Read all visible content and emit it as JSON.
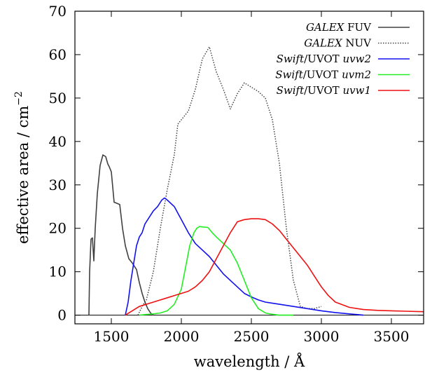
{
  "chart_data": {
    "type": "line",
    "xlabel": "wavelength / Å",
    "ylabel_main": "effective area / cm",
    "ylabel_sup": "−2",
    "xlim": [
      1240,
      3730
    ],
    "ylim": [
      -2,
      70
    ],
    "xticks": [
      1500,
      2000,
      2500,
      3000,
      3500
    ],
    "yticks": [
      0,
      10,
      20,
      30,
      40,
      50,
      60,
      70
    ],
    "grid": false,
    "legend_position": "top-right",
    "baseline_y": 0,
    "series": [
      {
        "name_italic": "GALEX",
        "name_rest": " FUV",
        "color": "#404040",
        "dash": "solid",
        "x": [
          1340,
          1345,
          1355,
          1365,
          1375,
          1385,
          1400,
          1420,
          1440,
          1460,
          1475,
          1485,
          1500,
          1520,
          1530,
          1560,
          1580,
          1600,
          1625,
          1650,
          1680,
          1700,
          1720,
          1740,
          1760,
          1780,
          1800
        ],
        "y": [
          0,
          10,
          17.5,
          17.8,
          12.5,
          20,
          28,
          34.5,
          36.9,
          36.5,
          34.8,
          34.2,
          33,
          26,
          25.9,
          25.5,
          20,
          16,
          13,
          12,
          10.5,
          7.5,
          5,
          3,
          1.5,
          0.5,
          0
        ]
      },
      {
        "name_italic": "GALEX",
        "name_rest": " NUV",
        "color": "#444444",
        "dash": "dotted",
        "x": [
          1690,
          1720,
          1750,
          1800,
          1850,
          1900,
          1950,
          1975,
          2000,
          2050,
          2100,
          2150,
          2200,
          2250,
          2300,
          2350,
          2400,
          2450,
          2500,
          2550,
          2600,
          2650,
          2700,
          2750,
          2800,
          2850,
          2900,
          2950,
          3000
        ],
        "y": [
          0,
          2,
          3.5,
          10,
          20,
          29,
          37,
          44,
          45,
          47,
          52,
          59,
          61.8,
          56,
          52,
          47.5,
          51,
          53.5,
          52.5,
          51.5,
          50,
          45,
          35,
          20,
          8,
          2,
          1.5,
          1.5,
          2
        ]
      },
      {
        "name_italic": "Swift",
        "name_rest": "/UVOT ",
        "name_tail_italic": "uvw2",
        "color": "#1111ee",
        "dash": "solid",
        "x": [
          1600,
          1620,
          1640,
          1660,
          1680,
          1700,
          1720,
          1740,
          1760,
          1780,
          1800,
          1830,
          1860,
          1880,
          1900,
          1950,
          2000,
          2050,
          2100,
          2150,
          2200,
          2250,
          2300,
          2350,
          2400,
          2450,
          2500,
          2550,
          2600,
          2700,
          2800,
          2900,
          3000,
          3100,
          3200,
          3300
        ],
        "y": [
          0,
          3,
          8,
          12,
          16,
          18,
          19,
          21,
          22,
          23,
          24,
          25,
          26.5,
          27,
          26.5,
          25,
          22,
          19,
          16.5,
          15,
          13.5,
          11.5,
          9.5,
          8,
          6.5,
          5,
          4.2,
          3.5,
          3,
          2.5,
          2,
          1.5,
          1,
          0.6,
          0.3,
          0
        ]
      },
      {
        "name_italic": "Swift",
        "name_rest": "/UVOT ",
        "name_tail_italic": "uvm2",
        "color": "#22ee22",
        "dash": "solid",
        "x": [
          1700,
          1800,
          1850,
          1900,
          1950,
          2000,
          2030,
          2060,
          2090,
          2110,
          2130,
          2160,
          2190,
          2220,
          2250,
          2300,
          2350,
          2400,
          2450,
          2500,
          2550,
          2600,
          2650,
          2700,
          2800
        ],
        "y": [
          0,
          0.3,
          0.5,
          1,
          2.5,
          6,
          11,
          16,
          19,
          20,
          20.4,
          20.3,
          20.2,
          19,
          18,
          16.5,
          15,
          12,
          8,
          4,
          1.5,
          0.5,
          0.2,
          0,
          0
        ]
      },
      {
        "name_italic": "Swift",
        "name_rest": "/UVOT ",
        "name_tail_italic": "uvw1",
        "color": "#ee1111",
        "dash": "solid",
        "x": [
          1600,
          1700,
          1800,
          1900,
          2000,
          2050,
          2100,
          2150,
          2200,
          2250,
          2300,
          2350,
          2400,
          2450,
          2500,
          2550,
          2600,
          2650,
          2700,
          2750,
          2800,
          2850,
          2900,
          2950,
          3000,
          3050,
          3100,
          3200,
          3300,
          3400,
          3500,
          3600,
          3730
        ],
        "y": [
          0,
          2,
          3,
          4,
          5,
          5.5,
          6.5,
          8,
          10,
          13,
          16,
          19,
          21.5,
          22,
          22.2,
          22.2,
          22,
          21,
          19.5,
          17.5,
          15.5,
          13.5,
          11.5,
          9,
          6.5,
          4.5,
          3,
          1.8,
          1.3,
          1.1,
          1,
          0.9,
          0.8
        ]
      }
    ]
  }
}
